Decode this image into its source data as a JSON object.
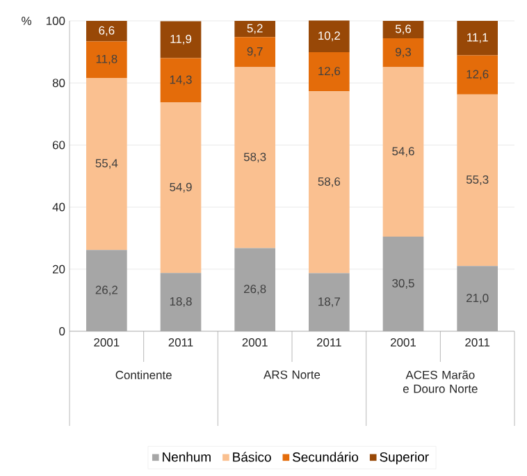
{
  "chart_data": {
    "type": "bar",
    "stacked": true,
    "ylabel": "%",
    "categories": [
      "2001",
      "2011",
      "2001",
      "2011",
      "2001",
      "2011"
    ],
    "annotations": [
      "Continente",
      "ARS Norte",
      "ACES Marão e Douro Norte"
    ],
    "series": [
      {
        "name": "Nenhum",
        "color": "#a6a6a6",
        "values": [
          26.2,
          18.8,
          26.8,
          18.7,
          30.5,
          21.0
        ],
        "value_labels": [
          "26,2",
          "18,8",
          "26,8",
          "18,7",
          "30,5",
          "21,0"
        ]
      },
      {
        "name": "Básico",
        "color": "#fac090",
        "values": [
          55.4,
          54.9,
          58.3,
          58.6,
          54.6,
          55.3
        ],
        "value_labels": [
          "55,4",
          "54,9",
          "58,3",
          "58,6",
          "54,6",
          "55,3"
        ]
      },
      {
        "name": "Secundário",
        "color": "#e46c0a",
        "values": [
          11.8,
          14.3,
          9.7,
          12.6,
          9.3,
          12.6
        ],
        "value_labels": [
          "11,8",
          "14,3",
          "9,7",
          "12,6",
          "9,3",
          "12,6"
        ]
      },
      {
        "name": "Superior",
        "color": "#984807",
        "values": [
          6.6,
          11.9,
          5.2,
          10.2,
          5.6,
          11.1
        ],
        "value_labels": [
          "6,6",
          "11,9",
          "5,2",
          "10,2",
          "5,6",
          "11,1"
        ]
      }
    ],
    "ylim": [
      0,
      100
    ],
    "yticks": [
      0,
      20,
      40,
      60,
      80,
      100
    ],
    "grid": "y",
    "legend": "bottom"
  }
}
